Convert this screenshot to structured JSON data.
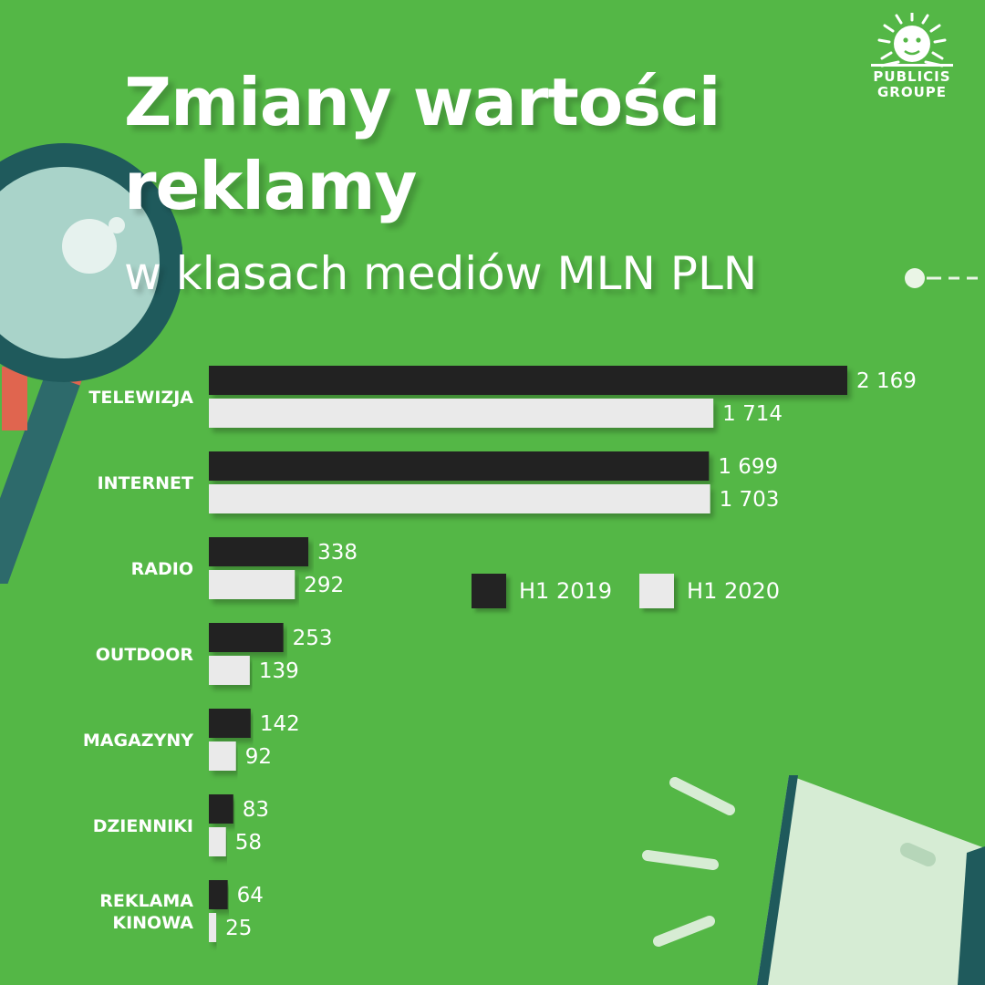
{
  "header": {
    "title_line1": "Zmiany wartości",
    "title_line2": "reklamy",
    "subtitle": "w klasach mediów MLN PLN"
  },
  "logo": {
    "line1": "PUBLICIS",
    "line2": "GROUPE",
    "icon": "lion-sun-icon"
  },
  "colors": {
    "background": "#54b746",
    "series_2019": "#232323",
    "series_2020": "#eaeaea"
  },
  "chart_data": {
    "type": "bar",
    "orientation": "horizontal",
    "title": "Zmiany wartości reklamy",
    "subtitle": "w klasach mediów MLN PLN",
    "categories": [
      "TELEWIZJA",
      "INTERNET",
      "RADIO",
      "OUTDOOR",
      "MAGAZYNY",
      "DZIENNIKI",
      "REKLAMA KINOWA"
    ],
    "series": [
      {
        "name": "H1 2019",
        "values": [
          2169,
          1699,
          338,
          253,
          142,
          83,
          64
        ],
        "labels": [
          "2 169",
          "1 699",
          "338",
          "253",
          "142",
          "83",
          "64"
        ]
      },
      {
        "name": "H1 2020",
        "values": [
          1714,
          1703,
          292,
          139,
          92,
          58,
          25
        ],
        "labels": [
          "1 714",
          "1 703",
          "292",
          "139",
          "92",
          "58",
          "25"
        ]
      }
    ],
    "legend_position": "center-right",
    "grid": false
  }
}
